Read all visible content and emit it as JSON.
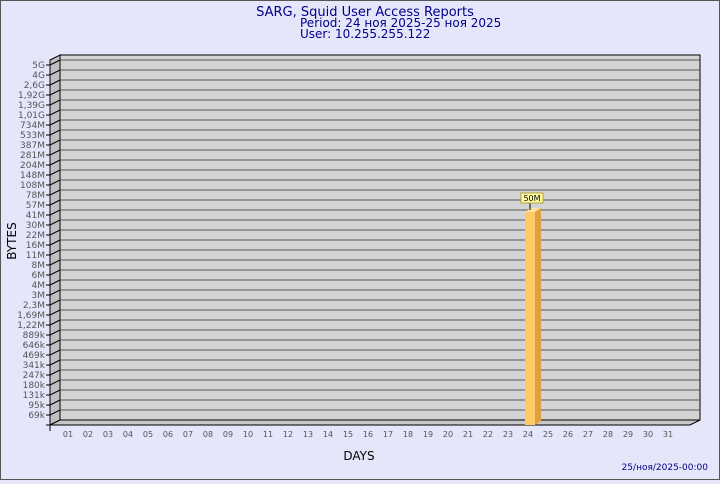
{
  "header": {
    "title": "SARG, Squid User Access Reports",
    "period": "Period: 24 ноя 2025-25 ноя 2025",
    "user": "User: 10.255.255.122"
  },
  "footer": {
    "timestamp": "25/ноя/2025-00:00"
  },
  "colors": {
    "background": "#e6e6fa",
    "title": "#00008b",
    "wall": "#d3d3d3",
    "bar": "#ffc966",
    "bar_side": "#e0a040",
    "label_box": "#ffffa0"
  },
  "chart_data": {
    "type": "bar",
    "title": "SARG, Squid User Access Reports",
    "xlabel": "DAYS",
    "ylabel": "BYTES",
    "y_scale": "log",
    "grid": true,
    "y_ticks": [
      "69k",
      "95k",
      "131k",
      "180k",
      "247k",
      "341k",
      "469k",
      "646k",
      "889k",
      "1,22M",
      "1,69M",
      "2,3M",
      "3M",
      "4M",
      "6M",
      "8M",
      "11M",
      "16M",
      "22M",
      "30M",
      "41M",
      "57M",
      "78M",
      "108M",
      "148M",
      "204M",
      "281M",
      "387M",
      "533M",
      "734M",
      "1,01G",
      "1,39G",
      "1,92G",
      "2,6G",
      "4G",
      "5G"
    ],
    "y_tick_values": [
      69000,
      95000,
      131000,
      180000,
      247000,
      341000,
      469000,
      646000,
      889000,
      1220000,
      1690000,
      2300000,
      3000000,
      4000000,
      6000000,
      8000000,
      11000000,
      16000000,
      22000000,
      30000000,
      41000000,
      57000000,
      78000000,
      108000000,
      148000000,
      204000000,
      281000000,
      387000000,
      533000000,
      734000000,
      1010000000,
      1390000000,
      1920000000,
      2600000000,
      4000000000,
      5000000000
    ],
    "categories": [
      "01",
      "02",
      "03",
      "04",
      "05",
      "06",
      "07",
      "08",
      "09",
      "10",
      "11",
      "12",
      "13",
      "14",
      "15",
      "16",
      "17",
      "18",
      "19",
      "20",
      "21",
      "22",
      "23",
      "24",
      "25",
      "26",
      "27",
      "28",
      "29",
      "30",
      "31"
    ],
    "values": [
      null,
      null,
      null,
      null,
      null,
      null,
      null,
      null,
      null,
      null,
      null,
      null,
      null,
      null,
      null,
      null,
      null,
      null,
      null,
      null,
      null,
      null,
      null,
      50000000,
      null,
      null,
      null,
      null,
      null,
      null,
      null
    ],
    "data_labels": {
      "24": "50M"
    }
  }
}
